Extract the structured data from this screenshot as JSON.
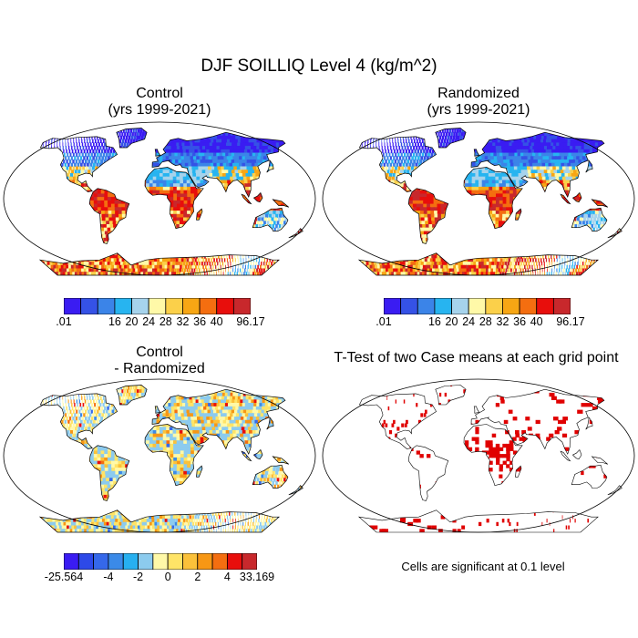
{
  "figure": {
    "title": "DJF SOILLIQ Level 4 (kg/m^2)",
    "note": "Cells are significant at 0.1 level"
  },
  "panels": [
    {
      "name": "control",
      "title_line1": "Control",
      "title_line2": "(yrs 1999-2021)"
    },
    {
      "name": "randomized",
      "title_line1": "Randomized",
      "title_line2": "(yrs 1999-2021)"
    },
    {
      "name": "difference",
      "title_line1": "Control",
      "title_line2": "- Randomized"
    },
    {
      "name": "ttest",
      "title_line1": "T-Test of two Case means at each grid point",
      "title_line2": ""
    }
  ],
  "colorbars": {
    "abs": {
      "colors": [
        "#3a1cf2",
        "#3552e6",
        "#3b84e8",
        "#27b4f0",
        "#a6d3ec",
        "#fff9a8",
        "#fbd04a",
        "#f7a614",
        "#f46e10",
        "#e80e0c",
        "#c8282c"
      ],
      "labels": [
        ".01",
        "16",
        "20",
        "24",
        "28",
        "32",
        "36",
        "40",
        "96.17"
      ],
      "label_boundaries": [
        0,
        3,
        4,
        5,
        6,
        7,
        8,
        9,
        11
      ]
    },
    "diff": {
      "colors": [
        "#3a1cf2",
        "#2d49e8",
        "#3568ea",
        "#3b8ae8",
        "#27b0f0",
        "#8ccbee",
        "#fff9a8",
        "#ffe467",
        "#fbc13a",
        "#f79714",
        "#f46e10",
        "#e80e0c",
        "#c8282c"
      ],
      "labels": [
        "-25.564",
        "-4",
        "-2",
        "0",
        "2",
        "4",
        "33.169"
      ],
      "label_boundaries": [
        0,
        3,
        5,
        7,
        9,
        11,
        13
      ]
    }
  },
  "colors": {
    "ocean": "#ffffff",
    "coast": "#000000",
    "significant": "#e00000"
  }
}
